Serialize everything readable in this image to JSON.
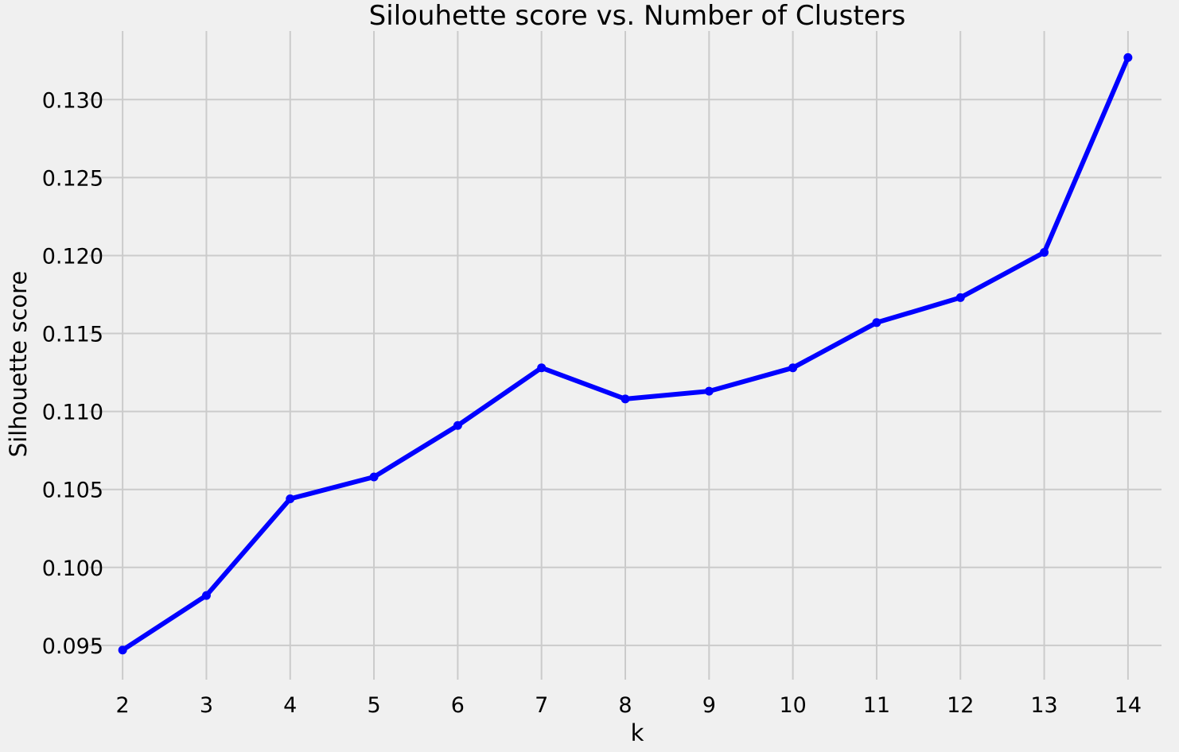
{
  "chart_data": {
    "type": "line",
    "title": "Silouhette score vs. Number of Clusters",
    "xlabel": "k",
    "ylabel": "Silhouette score",
    "x": [
      2,
      3,
      4,
      5,
      6,
      7,
      8,
      9,
      10,
      11,
      12,
      13,
      14
    ],
    "series": [
      {
        "values": [
          0.0947,
          0.0982,
          0.1044,
          0.1058,
          0.1091,
          0.1128,
          0.1108,
          0.1113,
          0.1128,
          0.1157,
          0.1173,
          0.1202,
          0.1327
        ]
      }
    ],
    "x_ticks": [
      "2",
      "3",
      "4",
      "5",
      "6",
      "7",
      "8",
      "9",
      "10",
      "11",
      "12",
      "13",
      "14"
    ],
    "y_ticks": [
      "0.095",
      "0.100",
      "0.105",
      "0.110",
      "0.115",
      "0.120",
      "0.125",
      "0.130"
    ],
    "xlim": [
      1.6,
      14.4
    ],
    "ylim": [
      0.0928,
      0.1344
    ],
    "grid": true,
    "line_color": "#0000ff",
    "background_color": "#f0f0f0",
    "grid_color": "#cbcbcb"
  }
}
